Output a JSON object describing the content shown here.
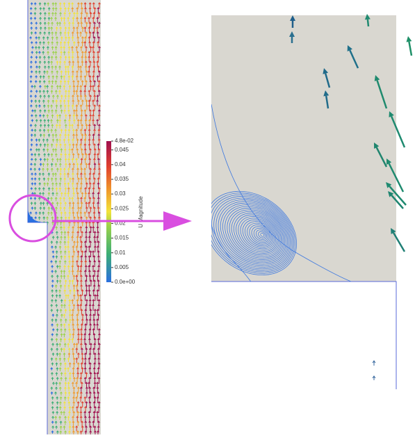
{
  "colorbar": {
    "title": "U Magnitude",
    "range": [
      0,
      0.048
    ],
    "ticks": [
      {
        "value": 0.048,
        "label": "4.8e-02"
      },
      0.045,
      0.04,
      0.035,
      0.03,
      0.025,
      0.02,
      0.015,
      0.01,
      0.005,
      {
        "value": 0,
        "label": "0.0e+00"
      }
    ]
  }
}
